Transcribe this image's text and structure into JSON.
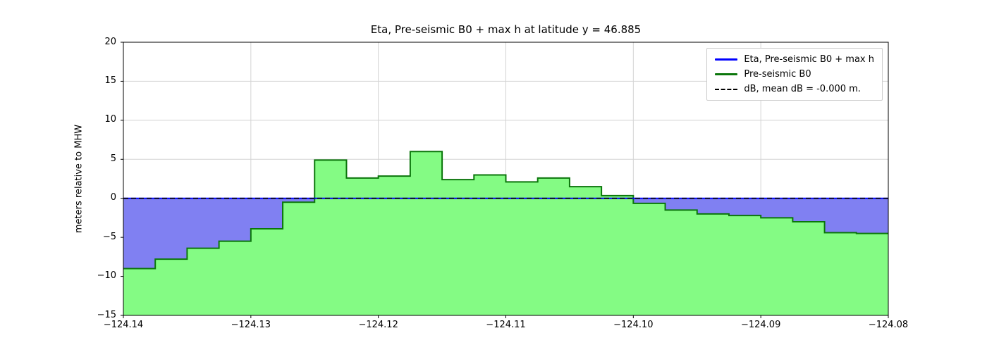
{
  "chart_data": {
    "type": "area",
    "title": "Eta, Pre-seismic B0 + max h at latitude y = 46.885",
    "ylabel": "meters relative to MHW",
    "xlabel": "",
    "xlim": [
      -124.14,
      -124.08
    ],
    "ylim": [
      -15,
      20
    ],
    "grid": true,
    "x_ticks": {
      "values": [
        -124.14,
        -124.13,
        -124.12,
        -124.11,
        -124.1,
        -124.09,
        -124.08
      ],
      "labels": [
        "−124.14",
        "−124.13",
        "−124.12",
        "−124.11",
        "−124.10",
        "−124.09",
        "−124.08"
      ]
    },
    "y_ticks": {
      "values": [
        -15,
        -10,
        -5,
        0,
        5,
        10,
        15,
        20
      ],
      "labels": [
        "−15",
        "−10",
        "−5",
        "0",
        "5",
        "10",
        "15",
        "20"
      ]
    },
    "colors": {
      "grid": "#d3d3d3",
      "axis": "#000000",
      "background": "#ffffff"
    },
    "series": [
      {
        "name": "Eta, Pre-seismic B0 + max h",
        "style": "solid",
        "line_color": "#0000ff",
        "fill_color": "#8080f2",
        "constant_value": 0.0
      },
      {
        "name": "Pre-seismic B0",
        "style": "solid",
        "line_color": "#0b760b",
        "fill_color": "#84fb84",
        "step_edges": [
          -124.14,
          -124.1375,
          -124.135,
          -124.1325,
          -124.13,
          -124.1275,
          -124.125,
          -124.1225,
          -124.12,
          -124.1175,
          -124.115,
          -124.1125,
          -124.11,
          -124.1075,
          -124.105,
          -124.1025,
          -124.1,
          -124.0975,
          -124.095,
          -124.0925,
          -124.09,
          -124.0875,
          -124.085,
          -124.0825,
          -124.08
        ],
        "step_values": [
          -9.0,
          -7.8,
          -6.4,
          -5.5,
          -3.9,
          -0.5,
          4.9,
          2.6,
          2.85,
          6.0,
          2.4,
          3.0,
          2.1,
          2.6,
          1.5,
          0.35,
          -0.65,
          -1.5,
          -2.0,
          -2.2,
          -2.5,
          -3.0,
          -4.4,
          -4.5
        ]
      },
      {
        "name": "dB, mean dB = -0.000 m.",
        "style": "dashed",
        "line_color": "#000000",
        "constant_value": 0.0
      }
    ],
    "legend": {
      "position": "upper right",
      "entries": [
        "Eta, Pre-seismic B0 + max h",
        "Pre-seismic B0",
        "dB, mean dB = -0.000 m."
      ]
    }
  }
}
